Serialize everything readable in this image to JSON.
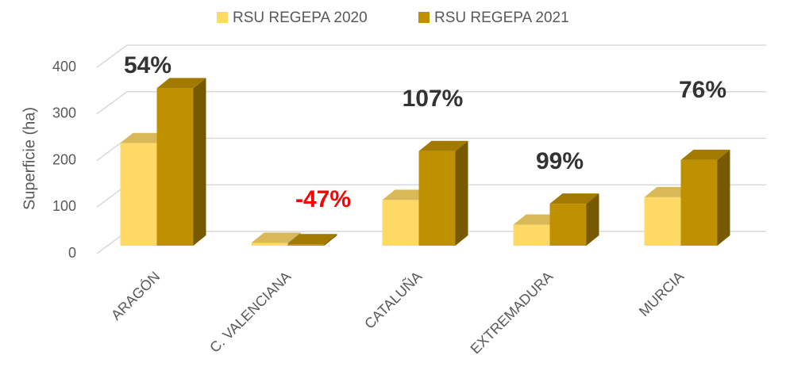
{
  "chart_data": {
    "type": "bar3d",
    "y_axis_label": "Superficie (ha)",
    "categories": [
      "ARAGÓN",
      "C. VALENCIANA",
      "CATALUÑA",
      "EXTREMADURA",
      "MURCIA"
    ],
    "series": [
      {
        "name": "RSU REGEPA 2020",
        "color": "#FFD966",
        "values": [
          220,
          6,
          98,
          45,
          104
        ]
      },
      {
        "name": "RSU REGEPA 2021",
        "color": "#BF9000",
        "values": [
          338,
          3,
          203,
          90,
          184
        ]
      }
    ],
    "change_labels": [
      {
        "text": "54%",
        "color": "#333333"
      },
      {
        "text": "-47%",
        "color": "#FF0000"
      },
      {
        "text": "107%",
        "color": "#333333"
      },
      {
        "text": "99%",
        "color": "#333333"
      },
      {
        "text": "76%",
        "color": "#333333"
      }
    ],
    "ylim": [
      0,
      400
    ],
    "yticks": [
      0,
      100,
      200,
      300,
      400
    ],
    "grid": true,
    "legend": "top"
  }
}
